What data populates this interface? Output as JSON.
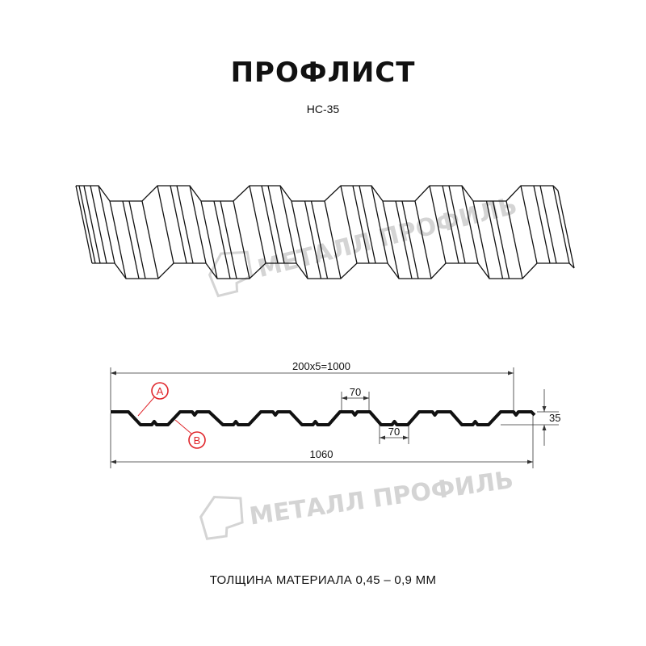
{
  "title": "ПРОФЛИСТ",
  "model": "НС-35",
  "watermark": "МЕТАЛЛ ПРОФИЛЬ",
  "dimensions": {
    "pitch_total": "200x5=1000",
    "full_width": "1060",
    "top_shelf": "70",
    "bottom_shelf": "70",
    "height": "35"
  },
  "markers": {
    "a": "A",
    "b": "B"
  },
  "thickness_note": "ТОЛЩИНА МАТЕРИАЛА 0,45 – 0,9 ММ",
  "colors": {
    "line": "#111111",
    "marker": "#e0262b",
    "watermark": "#d4d4d4"
  }
}
